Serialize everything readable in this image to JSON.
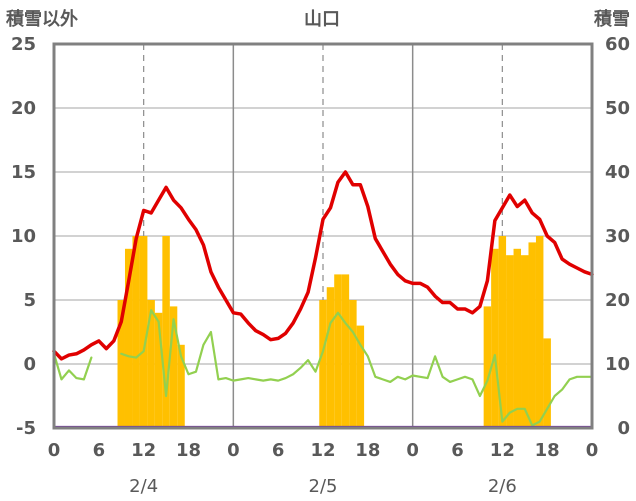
{
  "chart_data": {
    "type": "bar",
    "title": "山口",
    "left_axis_label": "積雪以外",
    "right_axis_label": "積雪",
    "y_left_range": [
      -5,
      25
    ],
    "y_left_ticks": [
      "25",
      "20",
      "15",
      "10",
      "5",
      "0",
      "-5"
    ],
    "y_right_range": [
      0,
      60
    ],
    "y_right_ticks": [
      "60",
      "50",
      "40",
      "30",
      "20",
      "10",
      "0"
    ],
    "x_range_hours": [
      0,
      72
    ],
    "x_tick_labels": [
      "0",
      "12",
      "18",
      "0",
      "6",
      "12",
      "18",
      "0",
      "6",
      "12",
      "18",
      "0"
    ],
    "x_tick_positions_hours": [
      0,
      12,
      18,
      24,
      30,
      36,
      42,
      48,
      54,
      60,
      66,
      72
    ],
    "hour_tick_labels": [
      "0",
      "6",
      "12",
      "18",
      "0",
      "6",
      "12",
      "18",
      "0",
      "6",
      "12",
      "18",
      "0"
    ],
    "dates": [
      "2/4",
      "2/5",
      "2/6"
    ],
    "grid": {
      "day_separators": true,
      "noon_dashed": true,
      "horizontal": true
    },
    "series": [
      {
        "key": "snow_bars",
        "type": "bar",
        "axis": "right",
        "color": "#FFC000",
        "x": [
          9,
          10,
          11,
          12,
          13,
          14,
          15,
          16,
          17,
          36,
          37,
          38,
          39,
          40,
          41,
          58,
          59,
          60,
          61,
          62,
          63,
          64,
          65,
          66
        ],
        "values": [
          20,
          28,
          30,
          30,
          20,
          18,
          30,
          19,
          13,
          20,
          22,
          24,
          24,
          20,
          16,
          19,
          28,
          30,
          27,
          28,
          27,
          29,
          30,
          14
        ]
      },
      {
        "key": "red_line",
        "type": "line",
        "axis": "left",
        "color": "#E00000",
        "x": [
          0,
          1,
          2,
          3,
          4,
          5,
          6,
          7,
          8,
          9,
          10,
          11,
          12,
          13,
          14,
          15,
          16,
          17,
          18,
          19,
          20,
          21,
          22,
          23,
          24,
          25,
          26,
          27,
          28,
          29,
          30,
          31,
          32,
          33,
          34,
          35,
          36,
          37,
          38,
          39,
          40,
          41,
          42,
          43,
          44,
          45,
          46,
          47,
          48,
          49,
          50,
          51,
          52,
          53,
          54,
          55,
          56,
          57,
          58,
          59,
          60,
          61,
          62,
          63,
          64,
          65,
          66,
          67,
          68,
          69,
          70,
          71,
          72
        ],
        "values": [
          1,
          0.4,
          0.7,
          0.8,
          1.1,
          1.5,
          1.8,
          1.2,
          1.8,
          3.3,
          6.5,
          9.8,
          12.0,
          11.8,
          12.8,
          13.8,
          12.8,
          12.2,
          11.3,
          10.5,
          9.3,
          7.2,
          6.0,
          5.0,
          4.0,
          3.9,
          3.2,
          2.6,
          2.3,
          1.9,
          2.0,
          2.4,
          3.2,
          4.3,
          5.6,
          8.3,
          11.3,
          12.2,
          14.2,
          15.0,
          14.0,
          14.0,
          12.3,
          9.8,
          8.8,
          7.8,
          7.0,
          6.5,
          6.3,
          6.3,
          6.0,
          5.3,
          4.8,
          4.8,
          4.3,
          4.3,
          4.0,
          4.5,
          6.5,
          11.2,
          12.2,
          13.2,
          12.3,
          12.8,
          11.8,
          11.3,
          10.0,
          9.5,
          8.2,
          7.8,
          7.5,
          7.2,
          7.0
        ]
      },
      {
        "key": "green_line",
        "type": "line",
        "axis": "left",
        "color": "#92D050",
        "x": [
          0,
          1,
          2,
          3,
          4,
          5,
          6,
          null,
          9,
          10,
          11,
          12,
          13,
          14,
          15,
          16,
          17,
          18,
          19,
          20,
          21,
          22,
          23,
          24,
          25,
          26,
          27,
          28,
          29,
          30,
          31,
          32,
          33,
          34,
          35,
          36,
          37,
          38,
          39,
          40,
          41,
          42,
          43,
          44,
          45,
          46,
          47,
          48,
          49,
          50,
          51,
          52,
          53,
          54,
          55,
          56,
          57,
          58,
          59,
          60,
          61,
          62,
          63,
          64,
          65,
          66,
          67,
          68,
          69,
          70,
          71,
          72
        ],
        "values": [
          0.8,
          -1.2,
          -0.5,
          -1.1,
          -1.2,
          0.5,
          null,
          null,
          0.8,
          0.6,
          0.5,
          1.0,
          4.2,
          3.3,
          -2.5,
          3.5,
          0.6,
          -0.8,
          -0.6,
          1.5,
          2.5,
          -1.2,
          -1.1,
          -1.3,
          -1.2,
          -1.1,
          -1.2,
          -1.3,
          -1.2,
          -1.3,
          -1.1,
          -0.8,
          -0.3,
          0.3,
          -0.6,
          1.0,
          3.2,
          4.0,
          3.2,
          2.5,
          1.5,
          0.6,
          -1.0,
          -1.2,
          -1.4,
          -1.0,
          -1.2,
          -0.9,
          -1.0,
          -1.1,
          0.6,
          -1.0,
          -1.4,
          -1.2,
          -1.0,
          -1.2,
          -2.5,
          -1.3,
          0.7,
          -4.5,
          -3.8,
          -3.5,
          -3.5,
          -4.8,
          -4.5,
          -3.5,
          -2.5,
          -2.0,
          -1.2,
          -1.0,
          -1.0,
          -1.0
        ]
      },
      {
        "key": "purple_baseline",
        "type": "line",
        "axis": "left",
        "color": "#7030A0",
        "x": [
          0,
          72
        ],
        "values": [
          -4.95,
          -4.95
        ]
      }
    ]
  }
}
